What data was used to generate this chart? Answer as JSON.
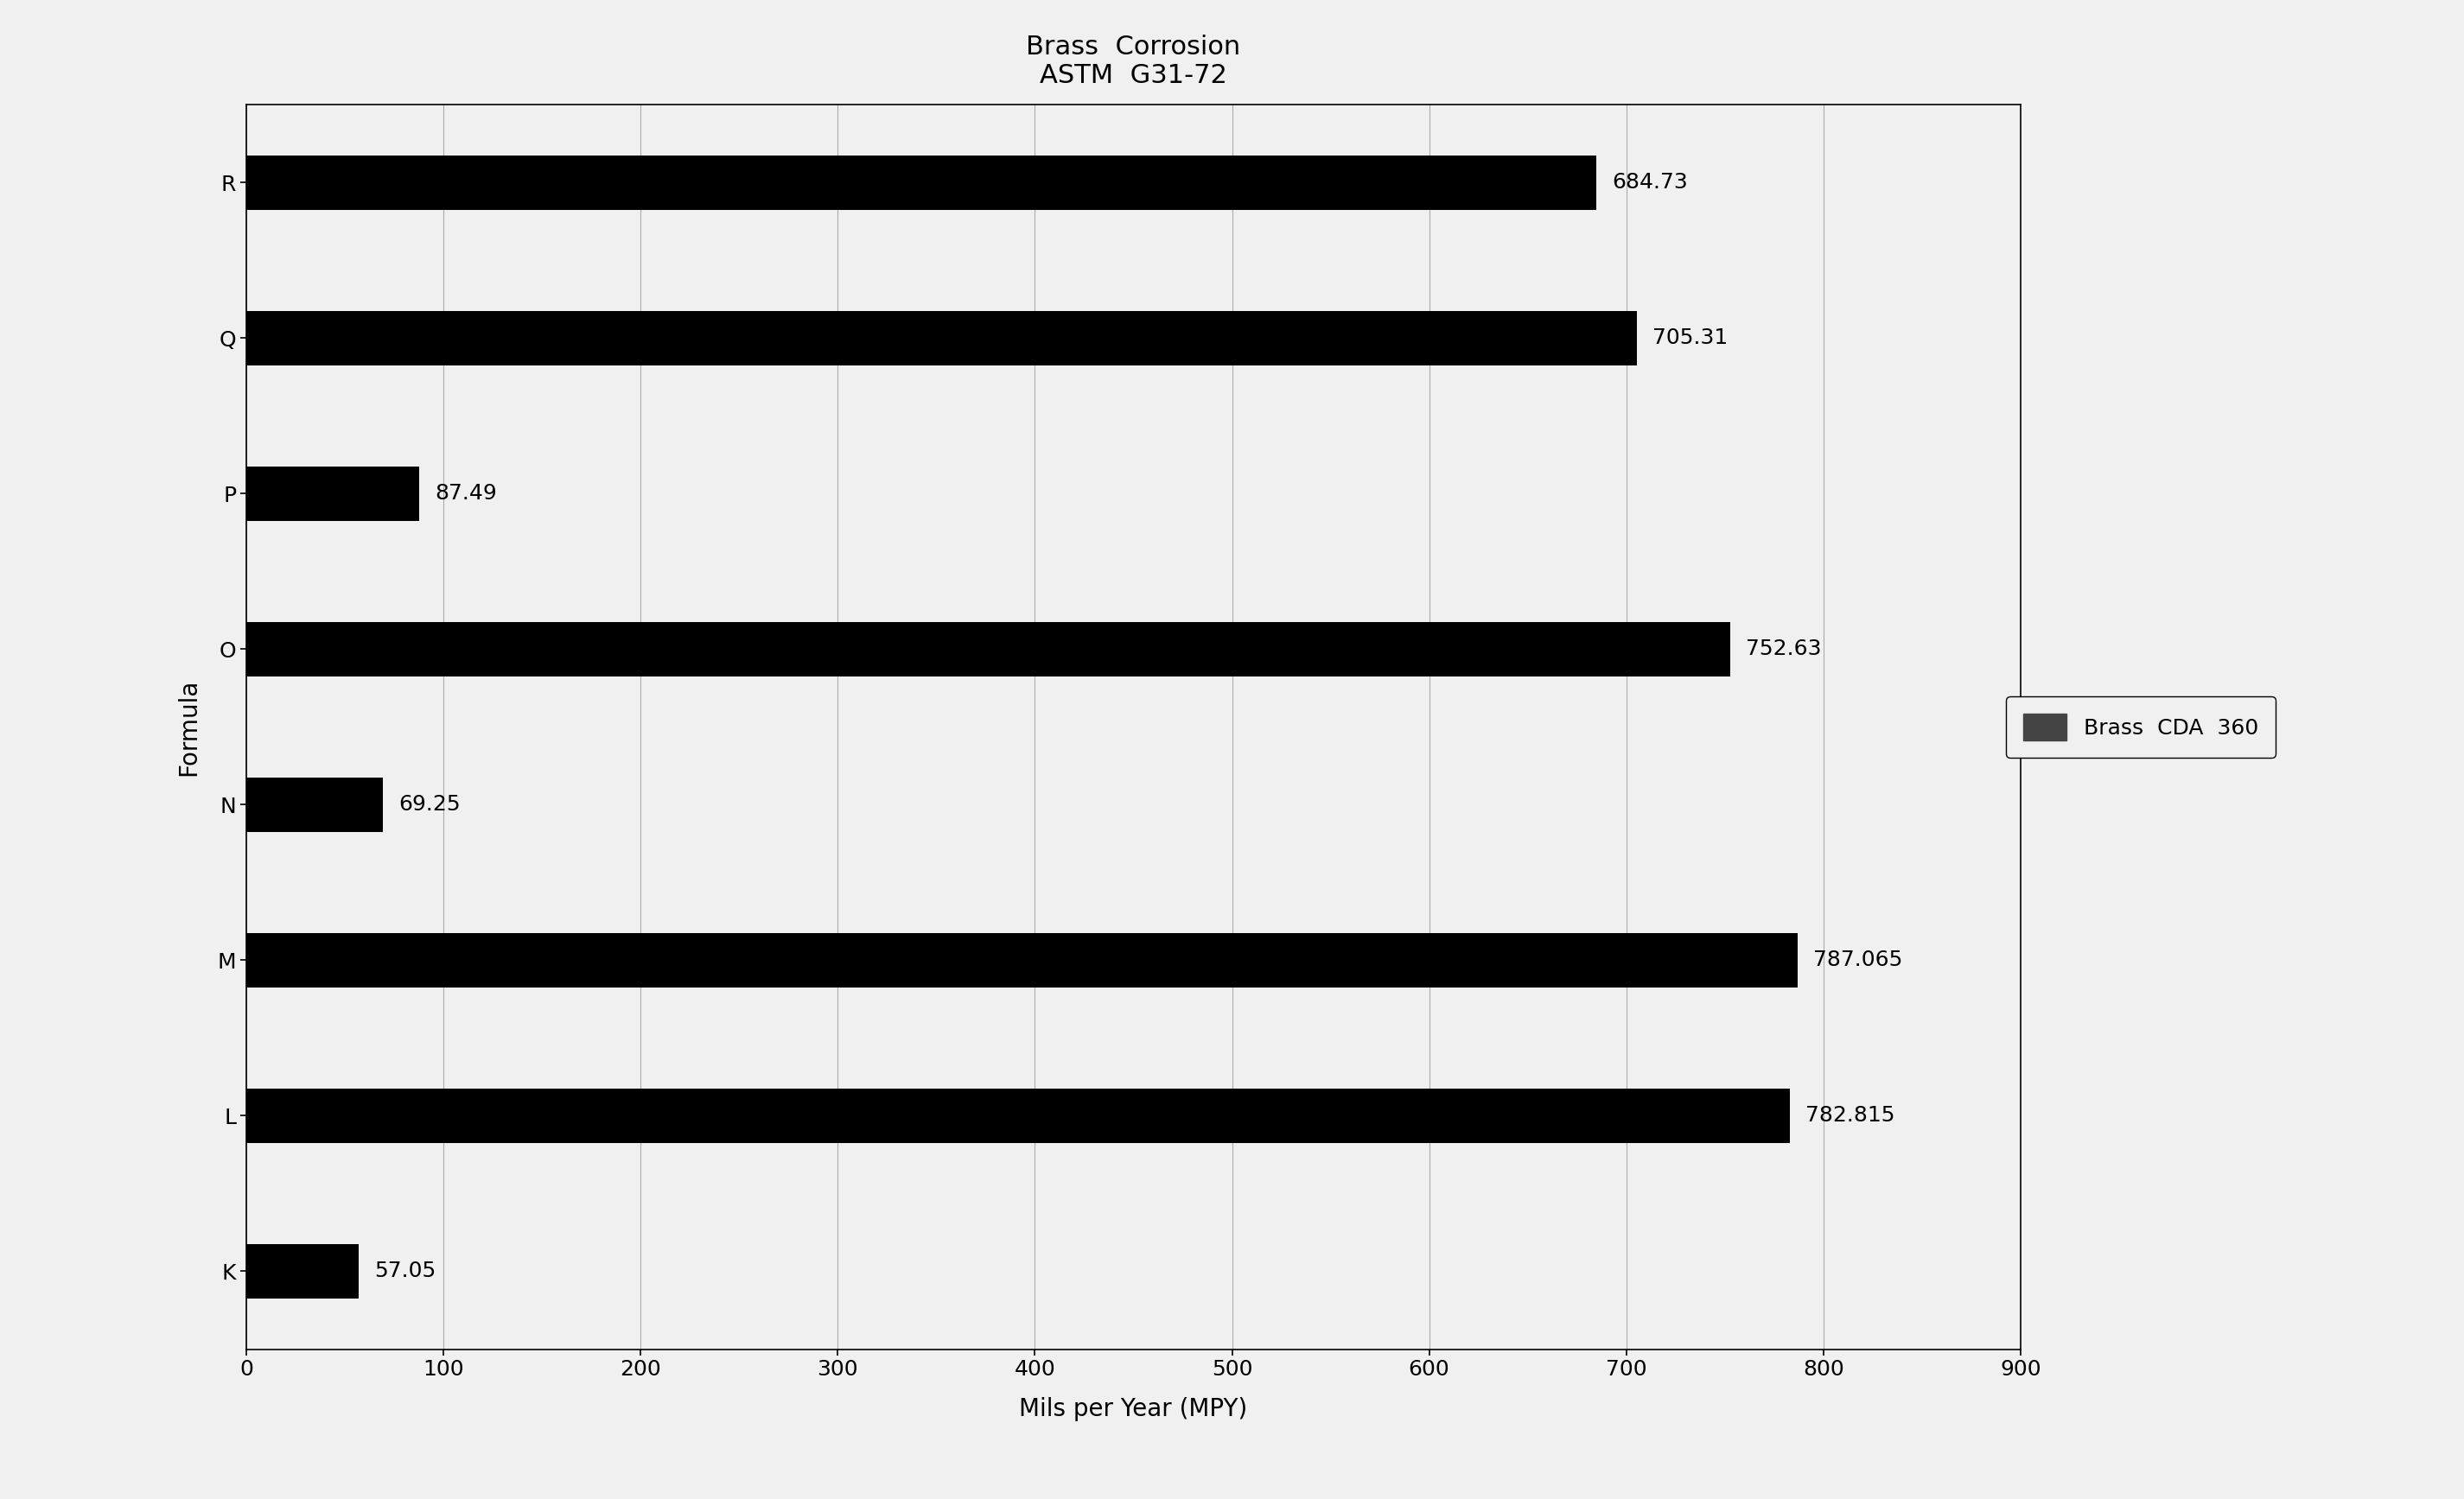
{
  "title": "Brass  Corrosion\nASTM  G31-72",
  "xlabel": "Mils per Year (MPY)",
  "ylabel": "Formula",
  "categories": [
    "K",
    "L",
    "M",
    "N",
    "O",
    "P",
    "Q",
    "R"
  ],
  "values": [
    57.05,
    782.815,
    787.065,
    69.25,
    752.63,
    87.49,
    705.31,
    684.73
  ],
  "bar_color": "#000000",
  "xlim": [
    0,
    900
  ],
  "xticks": [
    0,
    100,
    200,
    300,
    400,
    500,
    600,
    700,
    800,
    900
  ],
  "legend_label": "Brass  CDA  360",
  "legend_color": "#444444",
  "background_color": "#f0f0f0",
  "title_fontsize": 22,
  "axis_label_fontsize": 20,
  "tick_fontsize": 18,
  "annotation_fontsize": 18,
  "legend_fontsize": 18,
  "bar_height": 0.35
}
